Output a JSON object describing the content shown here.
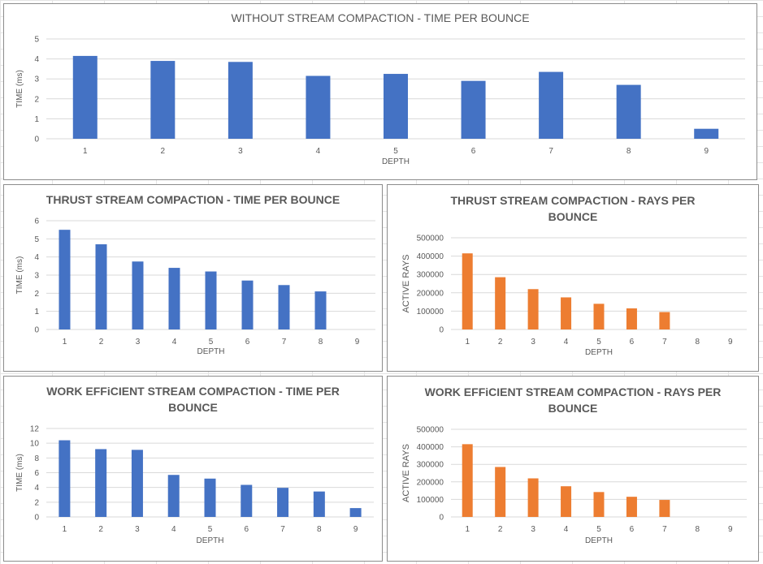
{
  "colors": {
    "blue": "#4472C4",
    "orange": "#ED7D31",
    "grid": "#d9d9d9",
    "text": "#595959"
  },
  "chart_data": [
    {
      "type": "bar",
      "title": "WITHOUT STREAM COMPACTION - TIME PER BOUNCE",
      "xlabel": "DEPTH",
      "ylabel": "TIME (ms)",
      "categories": [
        "1",
        "2",
        "3",
        "4",
        "5",
        "6",
        "7",
        "8",
        "9"
      ],
      "values": [
        4.15,
        3.9,
        3.85,
        3.15,
        3.25,
        2.9,
        3.35,
        2.7,
        0.5
      ],
      "ylim": [
        0,
        5
      ],
      "yticks": [
        0,
        1,
        2,
        3,
        4,
        5
      ],
      "color": "blue",
      "grid": true,
      "title_style": "normal"
    },
    {
      "type": "bar",
      "title": "THRUST STREAM COMPACTION - TIME PER BOUNCE",
      "xlabel": "DEPTH",
      "ylabel": "TIME (ms)",
      "categories": [
        "1",
        "2",
        "3",
        "4",
        "5",
        "6",
        "7",
        "8",
        "9"
      ],
      "values": [
        5.5,
        4.7,
        3.75,
        3.4,
        3.2,
        2.7,
        2.45,
        2.1,
        0
      ],
      "ylim": [
        0,
        6
      ],
      "yticks": [
        0,
        1,
        2,
        3,
        4,
        5,
        6
      ],
      "color": "blue",
      "grid": true,
      "title_style": "bold"
    },
    {
      "type": "bar",
      "title": "THRUST STREAM COMPACTION - RAYS PER BOUNCE",
      "xlabel": "DEPTH",
      "ylabel": "ACTIVE RAYS",
      "categories": [
        "1",
        "2",
        "3",
        "4",
        "5",
        "6",
        "7",
        "8",
        "9"
      ],
      "values": [
        415000,
        285000,
        220000,
        175000,
        140000,
        115000,
        95000,
        0,
        0
      ],
      "ylim": [
        0,
        500000
      ],
      "yticks": [
        0,
        100000,
        200000,
        300000,
        400000,
        500000
      ],
      "color": "orange",
      "grid": true,
      "title_style": "bold"
    },
    {
      "type": "bar",
      "title": "WORK EFFiCIENT STREAM COMPACTION - TIME PER BOUNCE",
      "xlabel": "DEPTH",
      "ylabel": "TIME (ms)",
      "categories": [
        "1",
        "2",
        "3",
        "4",
        "5",
        "6",
        "7",
        "8",
        "9"
      ],
      "values": [
        10.4,
        9.2,
        9.1,
        5.7,
        5.2,
        4.35,
        3.95,
        3.45,
        1.2
      ],
      "ylim": [
        0,
        12
      ],
      "yticks": [
        0,
        2,
        4,
        6,
        8,
        10,
        12
      ],
      "color": "blue",
      "grid": true,
      "title_style": "bold"
    },
    {
      "type": "bar",
      "title": "WORK EFFiCIENT STREAM COMPACTION - RAYS PER BOUNCE",
      "xlabel": "DEPTH",
      "ylabel": "ACTIVE RAYS",
      "categories": [
        "1",
        "2",
        "3",
        "4",
        "5",
        "6",
        "7",
        "8",
        "9"
      ],
      "values": [
        415000,
        285000,
        220000,
        175000,
        142000,
        115000,
        97000,
        0,
        0
      ],
      "ylim": [
        0,
        500000
      ],
      "yticks": [
        0,
        100000,
        200000,
        300000,
        400000,
        500000
      ],
      "color": "orange",
      "grid": true,
      "title_style": "bold"
    }
  ]
}
